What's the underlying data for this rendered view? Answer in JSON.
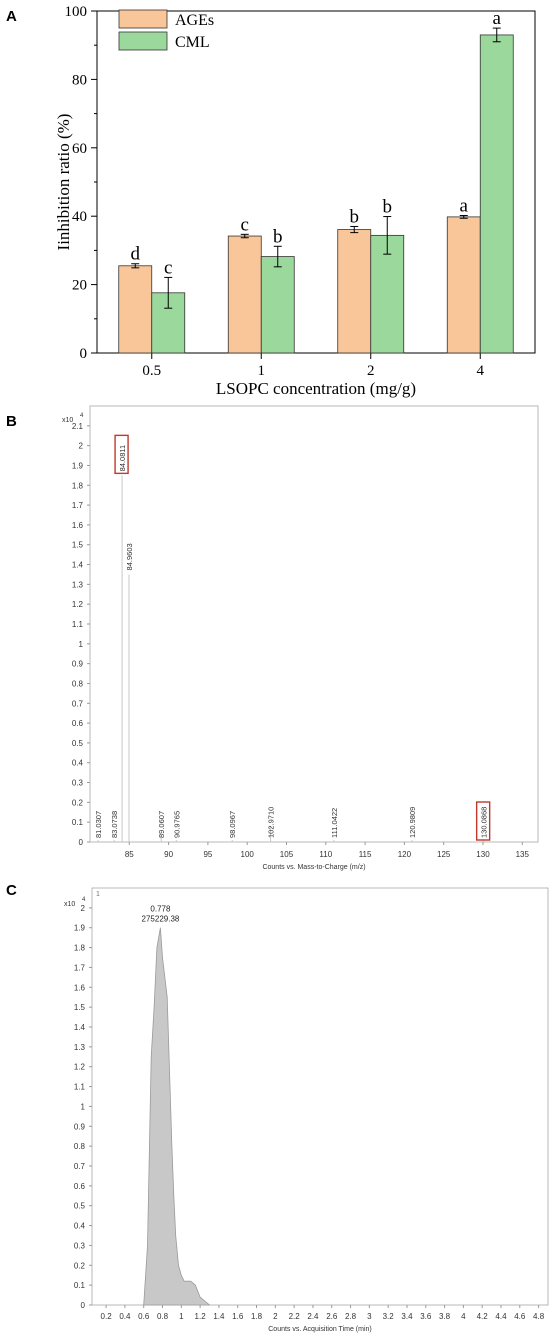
{
  "panels": {
    "A": {
      "letter": "A"
    },
    "B": {
      "letter": "B"
    },
    "C": {
      "letter": "C"
    }
  },
  "chart_data": [
    {
      "id": "A",
      "type": "bar",
      "xlabel": "LSOPC concentration (mg/g)",
      "ylabel": "Iinhibition ratio (%)",
      "ylim": [
        0,
        100
      ],
      "yticks": [
        0,
        20,
        40,
        60,
        80,
        100
      ],
      "categories": [
        "0.5",
        "1",
        "2",
        "4"
      ],
      "legend_position": "top-left",
      "series": [
        {
          "name": "AGEs",
          "color": "#f9c699",
          "values": [
            25.5,
            34.2,
            36.1,
            39.8
          ],
          "errors": [
            0.6,
            0.5,
            0.9,
            0.4
          ],
          "letters": [
            "d",
            "c",
            "b",
            "a"
          ]
        },
        {
          "name": "CML",
          "color": "#9bd89b",
          "values": [
            17.6,
            28.2,
            34.4,
            93.0
          ],
          "errors": [
            4.5,
            3.0,
            5.5,
            2.0
          ],
          "letters": [
            "c",
            "b",
            "b",
            "a"
          ]
        }
      ]
    },
    {
      "id": "B",
      "type": "line",
      "multiplier": "x10",
      "multiplier_exp": "4",
      "xlabel": "Counts vs. Mass-to-Charge (m/z)",
      "xlim": [
        80,
        137
      ],
      "xticks": [
        85,
        90,
        95,
        100,
        105,
        110,
        115,
        120,
        125,
        130,
        135
      ],
      "ylim": [
        0,
        2.2
      ],
      "yticks": [
        "0",
        "0.1",
        "0.2",
        "0.3",
        "0.4",
        "0.5",
        "0.6",
        "0.7",
        "0.8",
        "0.9",
        "1",
        "1.1",
        "1.2",
        "1.3",
        "1.4",
        "1.5",
        "1.6",
        "1.7",
        "1.8",
        "1.9",
        "2",
        "2.1"
      ],
      "peaks": [
        {
          "mz": 81.0307,
          "label": "81.0307",
          "height": 0.01,
          "boxed": false
        },
        {
          "mz": 83.0738,
          "label": "83.0738",
          "height": 0.01,
          "boxed": false
        },
        {
          "mz": 84.0811,
          "label": "84.0811",
          "height": 1.85,
          "boxed": true
        },
        {
          "mz": 84.9603,
          "label": "84.9603",
          "height": 1.35,
          "boxed": false
        },
        {
          "mz": 89.0607,
          "label": "89.0607",
          "height": 0.03,
          "boxed": false
        },
        {
          "mz": 90.9765,
          "label": "90.9765",
          "height": 0.01,
          "boxed": false
        },
        {
          "mz": 98.0967,
          "label": "98.0967",
          "height": 0.01,
          "boxed": false
        },
        {
          "mz": 102.971,
          "label": "102.9710",
          "height": 0.08,
          "boxed": false
        },
        {
          "mz": 111.0422,
          "label": "111.0422",
          "height": 0.01,
          "boxed": false
        },
        {
          "mz": 120.9809,
          "label": "120.9809",
          "height": 0.01,
          "boxed": false
        },
        {
          "mz": 130.0868,
          "label": "130.0868",
          "height": 0.01,
          "boxed": true
        }
      ]
    },
    {
      "id": "C",
      "type": "area",
      "multiplier": "x10",
      "multiplier_exp": "4",
      "corner_label": "1",
      "xlabel": "Counts vs. Acquisition Time (min)",
      "xlim": [
        0.05,
        4.9
      ],
      "xticks": [
        "0.2",
        "0.4",
        "0.6",
        "0.8",
        "1",
        "1.2",
        "1.4",
        "1.6",
        "1.8",
        "2",
        "2.2",
        "2.4",
        "2.6",
        "2.8",
        "3",
        "3.2",
        "3.4",
        "3.6",
        "3.8",
        "4",
        "4.2",
        "4.4",
        "4.6",
        "4.8"
      ],
      "ylim": [
        0,
        2.1
      ],
      "yticks": [
        "0",
        "0.1",
        "0.2",
        "0.3",
        "0.4",
        "0.5",
        "0.6",
        "0.7",
        "0.8",
        "0.9",
        "1",
        "1.1",
        "1.2",
        "1.3",
        "1.4",
        "1.5",
        "1.6",
        "1.7",
        "1.8",
        "1.9",
        "2"
      ],
      "peak_time": "0.778",
      "peak_counts": "275229.38",
      "peak_top": 1.9,
      "fill": "#c8c8c8",
      "trace_x": [
        0.6,
        0.64,
        0.68,
        0.71,
        0.74,
        0.778,
        0.8,
        0.85,
        0.88,
        0.9,
        0.92,
        0.94,
        0.97,
        1.0,
        1.03,
        1.06,
        1.1,
        1.15,
        1.2,
        1.25,
        1.3
      ],
      "trace_y": [
        0.0,
        0.3,
        1.25,
        1.5,
        1.8,
        1.9,
        1.75,
        1.55,
        1.1,
        0.8,
        0.55,
        0.35,
        0.2,
        0.15,
        0.12,
        0.12,
        0.12,
        0.1,
        0.04,
        0.02,
        0.0
      ]
    }
  ]
}
